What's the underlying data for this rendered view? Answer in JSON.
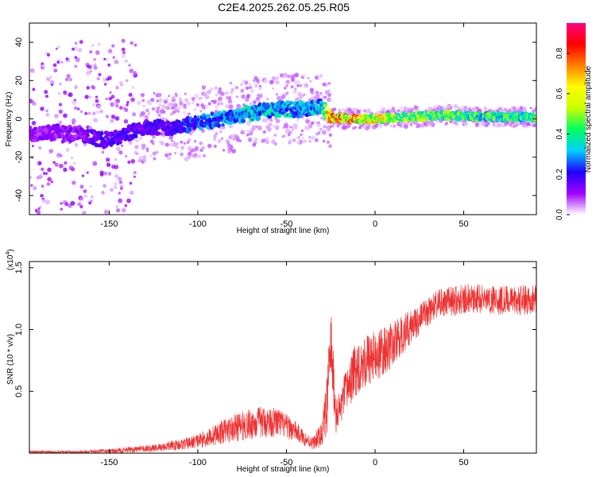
{
  "figure_title": "C2E4.2025.262.05.25.R05",
  "chart_data": [
    {
      "id": "spectrogram",
      "type": "heatmap",
      "xlabel": "Height of straight line (km)",
      "ylabel": "Frequency (Hz)",
      "xlim": [
        -195,
        91
      ],
      "ylim": [
        -50,
        50
      ],
      "x_ticks": [
        -150,
        -100,
        -50,
        0,
        50
      ],
      "x_tick_labels": [
        "-150",
        "-100",
        "-50",
        "0",
        "50"
      ],
      "y_ticks": [
        -40,
        -20,
        0,
        20,
        40
      ],
      "y_tick_labels": [
        "-40",
        "-20",
        "0",
        "20",
        "40"
      ],
      "colorbar": {
        "label": "Normalized spectral amplitude",
        "range": [
          0.0,
          0.95
        ],
        "ticks": [
          0.0,
          0.2,
          0.4,
          0.6,
          0.8
        ],
        "tick_labels": [
          "0.0",
          "0.2",
          "0.4",
          "0.6",
          "0.8"
        ],
        "colors": [
          "#ffffff",
          "#a000ff",
          "#1f00ff",
          "#00d0ff",
          "#00ff60",
          "#c8ff00",
          "#ffff00",
          "#ff8000",
          "#ff0000",
          "#ff0080"
        ]
      },
      "ridge": {
        "x": [
          -195,
          -180,
          -165,
          -155,
          -145,
          -135,
          -125,
          -115,
          -100,
          -85,
          -70,
          -55,
          -40,
          -30,
          -25,
          -15,
          0,
          20,
          40,
          60,
          91
        ],
        "frequency": [
          -8,
          -7,
          -8,
          -11,
          -10,
          -6,
          -4,
          -5,
          -2,
          0,
          3,
          5,
          5,
          6,
          1,
          0,
          0,
          1,
          2,
          1,
          1
        ],
        "amplitude": [
          0.12,
          0.15,
          0.15,
          0.2,
          0.22,
          0.2,
          0.22,
          0.22,
          0.3,
          0.35,
          0.4,
          0.38,
          0.35,
          0.4,
          0.85,
          0.85,
          0.7,
          0.6,
          0.55,
          0.5,
          0.5
        ]
      }
    },
    {
      "id": "snr",
      "type": "line",
      "xlabel": "Height of straight line (km)",
      "ylabel": "SNR (10 * v/v)",
      "y_scale_label": "(x10",
      "y_scale_exponent": "4",
      "y_scale_close": ")",
      "xlim": [
        -195,
        91
      ],
      "ylim": [
        0,
        1.55
      ],
      "x_ticks": [
        -150,
        -100,
        -50,
        0,
        50
      ],
      "x_tick_labels": [
        "-150",
        "-100",
        "-50",
        "0",
        "50"
      ],
      "y_ticks": [
        0.5,
        1.0,
        1.5
      ],
      "y_tick_labels": [
        "0.5",
        "1.0",
        "1.5"
      ],
      "series": [
        {
          "name": "SNR",
          "color": "#ee3333",
          "x": [
            -195,
            -185,
            -175,
            -165,
            -155,
            -145,
            -135,
            -125,
            -115,
            -105,
            -95,
            -85,
            -75,
            -65,
            -55,
            -45,
            -40,
            -35,
            -30,
            -27,
            -25,
            -22,
            -20,
            -15,
            -10,
            -5,
            0,
            5,
            10,
            15,
            20,
            25,
            30,
            35,
            40,
            50,
            60,
            70,
            80,
            91
          ],
          "mean": [
            0.01,
            0.01,
            0.01,
            0.01,
            0.015,
            0.02,
            0.03,
            0.04,
            0.06,
            0.08,
            0.12,
            0.18,
            0.22,
            0.25,
            0.25,
            0.18,
            0.12,
            0.08,
            0.15,
            0.4,
            0.9,
            0.3,
            0.35,
            0.55,
            0.7,
            0.75,
            0.78,
            0.82,
            0.88,
            0.95,
            1.02,
            1.08,
            1.15,
            1.2,
            1.22,
            1.25,
            1.25,
            1.24,
            1.23,
            1.25
          ],
          "spread": [
            0.01,
            0.01,
            0.01,
            0.01,
            0.015,
            0.02,
            0.025,
            0.03,
            0.04,
            0.05,
            0.07,
            0.1,
            0.12,
            0.13,
            0.12,
            0.08,
            0.06,
            0.05,
            0.1,
            0.25,
            0.3,
            0.15,
            0.15,
            0.2,
            0.22,
            0.22,
            0.2,
            0.2,
            0.18,
            0.16,
            0.14,
            0.12,
            0.12,
            0.12,
            0.12,
            0.12,
            0.12,
            0.12,
            0.12,
            0.12
          ]
        }
      ]
    }
  ]
}
